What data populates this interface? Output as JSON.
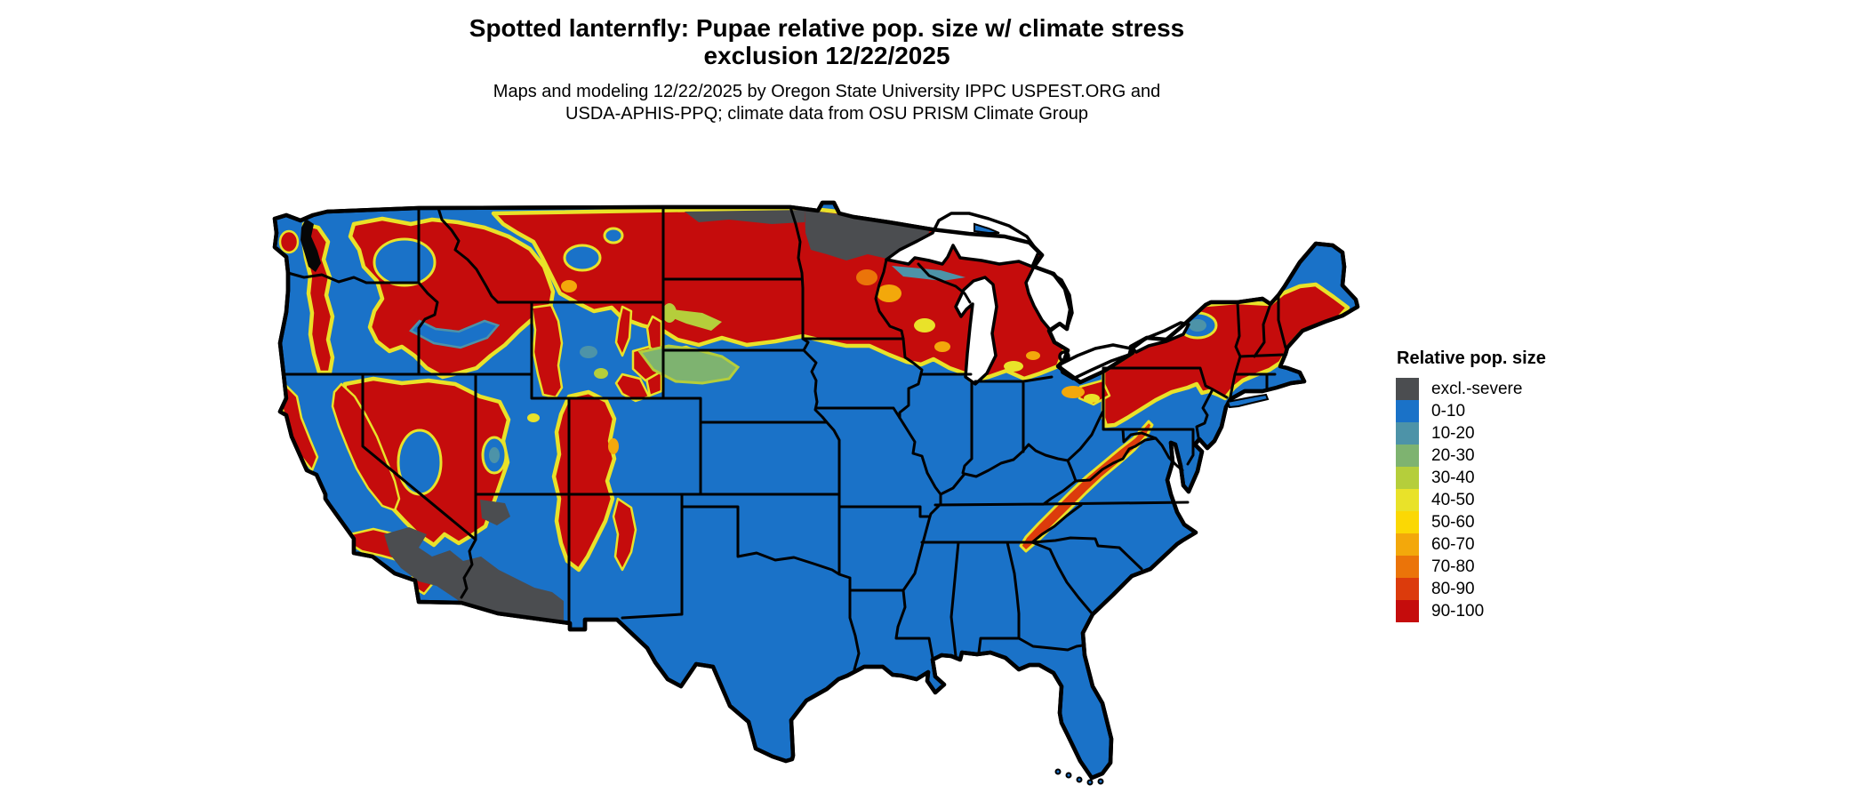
{
  "figure": {
    "title_line1": "Spotted lanternfly: Pupae relative pop. size w/ climate stress",
    "title_line2": "exclusion 12/22/2025",
    "subtitle_line1": "Maps and modeling 12/22/2025 by Oregon State University IPPC USPEST.ORG and",
    "subtitle_line2": "USDA-APHIS-PPQ; climate data from OSU PRISM Climate Group"
  },
  "legend": {
    "title": "Relative pop. size",
    "items": [
      {
        "key": "excl",
        "label": "excl.-severe",
        "color": "#4b4d50"
      },
      {
        "key": "b0",
        "label": "0-10",
        "color": "#1a72c8"
      },
      {
        "key": "b10",
        "label": "10-20",
        "color": "#4d93a8"
      },
      {
        "key": "b20",
        "label": "20-30",
        "color": "#7eb370"
      },
      {
        "key": "b30",
        "label": "30-40",
        "color": "#b5ce3b"
      },
      {
        "key": "b40",
        "label": "40-50",
        "color": "#e9e229"
      },
      {
        "key": "b50",
        "label": "50-60",
        "color": "#fbd804"
      },
      {
        "key": "b60",
        "label": "60-70",
        "color": "#f3a80b"
      },
      {
        "key": "b70",
        "label": "70-80",
        "color": "#eb7409"
      },
      {
        "key": "b80",
        "label": "80-90",
        "color": "#dc3b0c"
      },
      {
        "key": "b90",
        "label": "90-100",
        "color": "#c50c0c"
      }
    ]
  }
}
